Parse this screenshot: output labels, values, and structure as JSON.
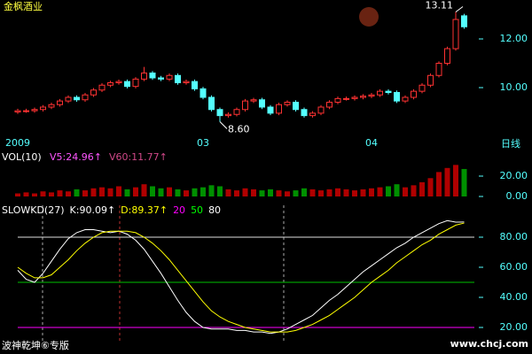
{
  "chart_data": [
    {
      "type": "candlestick",
      "title": "金枫酒业",
      "period": "日线",
      "categories": [
        "2009",
        null,
        null,
        null,
        null,
        null,
        null,
        null,
        null,
        null,
        null,
        null,
        null,
        null,
        null,
        null,
        null,
        null,
        null,
        null,
        null,
        null,
        "03",
        null,
        null,
        null,
        null,
        null,
        null,
        null,
        null,
        null,
        null,
        null,
        null,
        null,
        null,
        null,
        null,
        null,
        null,
        null,
        "04",
        null,
        null,
        null,
        null,
        null,
        null,
        null,
        null,
        null,
        null,
        null
      ],
      "open": [
        9.0,
        9.05,
        9.05,
        9.1,
        9.2,
        9.3,
        9.45,
        9.6,
        9.5,
        9.7,
        9.9,
        10.1,
        10.2,
        10.25,
        10.05,
        10.35,
        10.6,
        10.4,
        10.35,
        10.5,
        10.2,
        10.25,
        9.95,
        9.6,
        9.1,
        8.85,
        8.9,
        9.1,
        9.45,
        9.5,
        9.2,
        8.95,
        9.3,
        9.4,
        9.1,
        8.85,
        8.95,
        9.2,
        9.4,
        9.55,
        9.55,
        9.6,
        9.65,
        9.7,
        9.85,
        9.8,
        9.45,
        9.6,
        9.85,
        10.1,
        10.5,
        11.0,
        11.6,
        12.95
      ],
      "high": [
        9.13,
        9.13,
        9.18,
        9.28,
        9.38,
        9.53,
        9.68,
        9.68,
        9.78,
        9.98,
        10.18,
        10.28,
        10.33,
        10.33,
        10.43,
        10.85,
        10.68,
        10.48,
        10.58,
        10.58,
        10.33,
        10.33,
        10.03,
        9.68,
        9.18,
        8.98,
        9.18,
        9.53,
        9.58,
        9.58,
        9.28,
        9.38,
        9.48,
        9.48,
        9.18,
        9.03,
        9.28,
        9.48,
        9.63,
        9.63,
        9.68,
        9.73,
        9.78,
        9.93,
        9.93,
        9.88,
        9.68,
        9.93,
        10.18,
        10.58,
        11.08,
        11.68,
        13.11,
        13.03
      ],
      "low": [
        8.92,
        8.97,
        8.97,
        9.02,
        9.12,
        9.22,
        9.37,
        9.42,
        9.42,
        9.62,
        9.82,
        10.02,
        10.12,
        9.97,
        9.97,
        10.27,
        10.32,
        10.27,
        10.27,
        10.12,
        10.12,
        9.87,
        9.52,
        9.02,
        8.6,
        8.77,
        8.82,
        9.02,
        9.37,
        9.12,
        8.87,
        8.87,
        9.22,
        9.02,
        8.77,
        8.77,
        8.87,
        9.12,
        9.32,
        9.47,
        9.47,
        9.52,
        9.57,
        9.62,
        9.72,
        9.37,
        9.37,
        9.52,
        9.77,
        10.02,
        10.42,
        10.92,
        11.52,
        12.42
      ],
      "close": [
        9.05,
        9.05,
        9.1,
        9.2,
        9.3,
        9.45,
        9.6,
        9.5,
        9.7,
        9.9,
        10.1,
        10.2,
        10.25,
        10.05,
        10.35,
        10.6,
        10.4,
        10.35,
        10.5,
        10.2,
        10.25,
        9.95,
        9.6,
        9.1,
        8.85,
        8.9,
        9.1,
        9.45,
        9.5,
        9.2,
        8.95,
        9.3,
        9.4,
        9.1,
        8.85,
        8.95,
        9.2,
        9.4,
        9.55,
        9.55,
        9.6,
        9.65,
        9.7,
        9.85,
        9.8,
        9.45,
        9.6,
        9.85,
        10.1,
        10.5,
        11.0,
        11.6,
        12.8,
        12.5
      ],
      "up_color": "#ff3232",
      "down_color": "#54ffff",
      "ylim": [
        8.2,
        13.6
      ],
      "yticks": [
        {
          "value": 12,
          "label": "12.00"
        },
        {
          "value": 10,
          "label": "10.00"
        }
      ],
      "annotations": [
        {
          "text": "8.60",
          "at": 24,
          "value": 8.6
        },
        {
          "text": "13.11",
          "at": 52,
          "value": 13.11
        }
      ]
    },
    {
      "type": "bar",
      "label": "VOL(10)",
      "legend": [
        {
          "text": "V5:24.96↑",
          "color": "#ff55ff"
        },
        {
          "text": "V60:11.77↑",
          "color": "#d04888"
        }
      ],
      "values": [
        3,
        4,
        3,
        5,
        4,
        6,
        5,
        7,
        6,
        8,
        9,
        8,
        10,
        7,
        9,
        12,
        10,
        8,
        9,
        7,
        6,
        8,
        9,
        11,
        10,
        7,
        6,
        8,
        7,
        6,
        7,
        6,
        5,
        6,
        8,
        7,
        6,
        7,
        8,
        7,
        6,
        7,
        8,
        9,
        10,
        12,
        9,
        11,
        14,
        18,
        24,
        28,
        31,
        27
      ],
      "up_color": "#b00000",
      "down_color": "#009000",
      "ylim": [
        0,
        40
      ],
      "yticks": [
        {
          "value": 20,
          "label": "20.00"
        },
        {
          "value": 0,
          "label": "0.00"
        }
      ]
    },
    {
      "type": "line",
      "header": [
        {
          "text": "SLOWKD(27)",
          "color": "#ffffff"
        },
        {
          "text": "K:90.09↑",
          "color": "#ffffff"
        },
        {
          "text": "D:89.37↑",
          "color": "#ffff00"
        },
        {
          "text": "20",
          "color": "#ff00ff"
        },
        {
          "text": "50",
          "color": "#00ff00"
        },
        {
          "text": "80",
          "color": "#ffffff"
        }
      ],
      "series": [
        {
          "color": "#ffffff",
          "values": [
            58,
            52,
            50,
            56,
            64,
            72,
            79,
            83,
            85,
            85,
            84,
            83,
            84,
            82,
            78,
            72,
            64,
            56,
            47,
            38,
            30,
            24,
            20,
            19,
            19,
            19,
            18,
            18,
            17,
            17,
            16,
            17,
            19,
            22,
            25,
            28,
            33,
            38,
            42,
            47,
            52,
            57,
            61,
            65,
            69,
            73,
            76,
            80,
            83,
            86,
            89,
            91,
            90,
            90.09
          ]
        },
        {
          "color": "#ffff00",
          "values": [
            60,
            56,
            53,
            53,
            55,
            60,
            65,
            71,
            76,
            80,
            83,
            84,
            84,
            84,
            83,
            80,
            76,
            71,
            65,
            58,
            51,
            44,
            37,
            31,
            27,
            24,
            22,
            20,
            19,
            18,
            17,
            17,
            17,
            18,
            20,
            22,
            25,
            28,
            32,
            36,
            40,
            45,
            50,
            54,
            58,
            63,
            67,
            71,
            75,
            78,
            82,
            85,
            88,
            89.37
          ]
        }
      ],
      "levels": [
        {
          "value": 80,
          "color": "#e0e0e0"
        },
        {
          "value": 50,
          "color": "#00c000"
        },
        {
          "value": 20,
          "color": "#ff00ff"
        }
      ],
      "ylim": [
        14,
        102
      ],
      "yticks": [
        {
          "value": 80,
          "label": "80.00"
        },
        {
          "value": 60,
          "label": "60.00"
        },
        {
          "value": 40,
          "label": "40.00"
        },
        {
          "value": 20,
          "label": "20.00"
        }
      ]
    }
  ],
  "footer": "波神乾坤⑥专版",
  "watermark": "www.chcj.com"
}
